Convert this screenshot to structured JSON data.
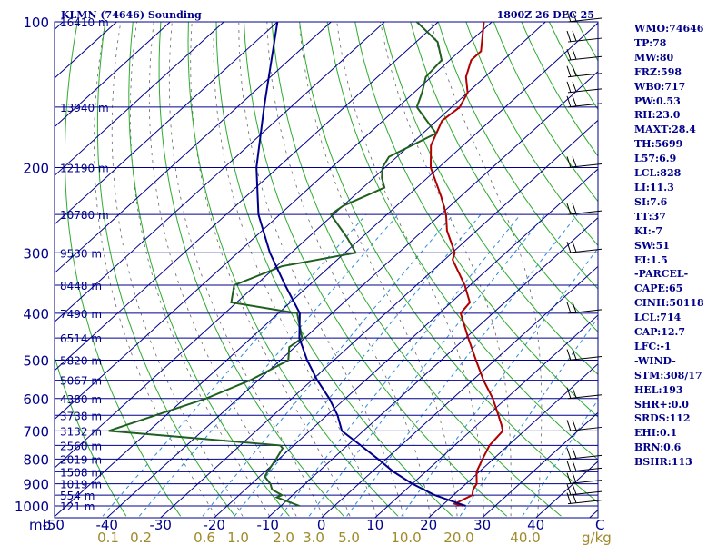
{
  "header": {
    "station": "KLMN (74646) Sounding",
    "time": "1800Z 26 DEC 25"
  },
  "indices": [
    "WMO:74646",
    "TP:78",
    "MW:80",
    "FRZ:598",
    "WB0:717",
    "PW:0.53",
    "RH:23.0",
    "MAXT:28.4",
    "TH:5699",
    "L57:6.9",
    "LCL:828",
    "LI:11.3",
    "SI:7.6",
    "TT:37",
    "KI:-7",
    "SW:51",
    "EI:1.5",
    "-PARCEL-",
    "CAPE:65",
    "CINH:50118",
    "LCL:714",
    "CAP:12.7",
    "LFC:-1",
    "-WIND-",
    "STM:308/17",
    "HEL:193",
    "SHR+:0.0",
    "SRDS:112",
    "EHI:0.1",
    "BRN:0.6",
    "BSHR:113"
  ],
  "chart_data": {
    "type": "line",
    "title": "KLMN (74646) Sounding",
    "subtitle": "1800Z 26 DEC 25",
    "xlabel": "",
    "ylabel": "",
    "x_unit_label": "C",
    "y_unit_label": "mb",
    "mixing_unit_label": "g/kg",
    "pressure_ticks": [
      "100",
      "200",
      "300",
      "400",
      "500",
      "600",
      "700",
      "800",
      "900",
      "1000"
    ],
    "temp_ticks": [
      "-50",
      "-40",
      "-30",
      "-20",
      "-10",
      "0",
      "10",
      "20",
      "30",
      "40"
    ],
    "mixing_ratio_ticks": [
      "0.1",
      "0.2",
      "0.6",
      "1.0",
      "2.0",
      "3.0",
      "5.0",
      "10.0",
      "20.0",
      "40.0"
    ],
    "height_labels": [
      {
        "p": 100,
        "label": "16410 m"
      },
      {
        "p": 150,
        "label": "13940 m"
      },
      {
        "p": 200,
        "label": "12190 m"
      },
      {
        "p": 250,
        "label": "10780 m"
      },
      {
        "p": 300,
        "label": "9530 m"
      },
      {
        "p": 350,
        "label": "8448 m"
      },
      {
        "p": 400,
        "label": "7490 m"
      },
      {
        "p": 450,
        "label": "6514 m"
      },
      {
        "p": 500,
        "label": "5820 m"
      },
      {
        "p": 550,
        "label": "5067 m"
      },
      {
        "p": 600,
        "label": "4380 m"
      },
      {
        "p": 650,
        "label": "3738 m"
      },
      {
        "p": 700,
        "label": "3132 m"
      },
      {
        "p": 750,
        "label": "2560 m"
      },
      {
        "p": 800,
        "label": "2019 m"
      },
      {
        "p": 850,
        "label": "1508 m"
      },
      {
        "p": 900,
        "label": "1019 m"
      },
      {
        "p": 950,
        "label": "554 m"
      },
      {
        "p": 1000,
        "label": "121 m"
      }
    ],
    "series": [
      {
        "color": "#b00000",
        "points": [
          [
            1000,
            24.0
          ],
          [
            990,
            22.0
          ],
          [
            950,
            23.5
          ],
          [
            925,
            22.5
          ],
          [
            900,
            22.0
          ],
          [
            850,
            19.5
          ],
          [
            800,
            18.0
          ],
          [
            750,
            16.5
          ],
          [
            700,
            16.0
          ],
          [
            680,
            14.5
          ],
          [
            650,
            12.0
          ],
          [
            600,
            7.5
          ],
          [
            550,
            2.0
          ],
          [
            500,
            -3.5
          ],
          [
            450,
            -9.5
          ],
          [
            400,
            -16.0
          ],
          [
            380,
            -16.5
          ],
          [
            350,
            -21.0
          ],
          [
            310,
            -28.5
          ],
          [
            300,
            -29.5
          ],
          [
            270,
            -35.5
          ],
          [
            250,
            -39.0
          ],
          [
            230,
            -43.5
          ],
          [
            200,
            -51.5
          ],
          [
            180,
            -56.0
          ],
          [
            160,
            -59.0
          ],
          [
            150,
            -58.5
          ],
          [
            140,
            -60.0
          ],
          [
            130,
            -63.5
          ],
          [
            120,
            -66.0
          ],
          [
            115,
            -66.0
          ],
          [
            100,
            -71.5
          ]
        ]
      },
      {
        "color": "#1f5f1f",
        "points": [
          [
            1000,
            -6.5
          ],
          [
            960,
            -12.5
          ],
          [
            950,
            -12.0
          ],
          [
            925,
            -15.0
          ],
          [
            900,
            -16.5
          ],
          [
            870,
            -19.0
          ],
          [
            850,
            -19.5
          ],
          [
            800,
            -20.5
          ],
          [
            760,
            -21.5
          ],
          [
            750,
            -22.5
          ],
          [
            720,
            -43.0
          ],
          [
            700,
            -57.5
          ],
          [
            650,
            -52.0
          ],
          [
            600,
            -46.0
          ],
          [
            550,
            -41.5
          ],
          [
            500,
            -38.5
          ],
          [
            470,
            -41.0
          ],
          [
            450,
            -40.5
          ],
          [
            400,
            -46.5
          ],
          [
            380,
            -61.0
          ],
          [
            350,
            -64.0
          ],
          [
            320,
            -59.0
          ],
          [
            300,
            -48.0
          ],
          [
            280,
            -52.5
          ],
          [
            250,
            -60.5
          ],
          [
            240,
            -60.0
          ],
          [
            220,
            -56.0
          ],
          [
            210,
            -58.5
          ],
          [
            200,
            -60.5
          ],
          [
            190,
            -61.5
          ],
          [
            170,
            -57.5
          ],
          [
            150,
            -66.5
          ],
          [
            140,
            -68.5
          ],
          [
            130,
            -71.0
          ],
          [
            120,
            -71.5
          ],
          [
            110,
            -76.0
          ],
          [
            100,
            -84.0
          ]
        ]
      },
      {
        "color": "#00008b",
        "points": [
          [
            1000,
            24.5
          ],
          [
            950,
            16.5
          ],
          [
            900,
            10.0
          ],
          [
            850,
            4.0
          ],
          [
            800,
            -1.5
          ],
          [
            750,
            -7.5
          ],
          [
            700,
            -14.0
          ],
          [
            650,
            -18.0
          ],
          [
            600,
            -23.0
          ],
          [
            550,
            -29.0
          ],
          [
            500,
            -35.0
          ],
          [
            450,
            -41.0
          ],
          [
            400,
            -46.0
          ],
          [
            350,
            -54.5
          ],
          [
            300,
            -64.0
          ],
          [
            250,
            -74.0
          ],
          [
            200,
            -84.0
          ],
          [
            150,
            -95.0
          ],
          [
            100,
            -110.0
          ]
        ]
      }
    ],
    "wind_levels": [
      990,
      950,
      900,
      850,
      800,
      700,
      600,
      500,
      400,
      300,
      250,
      200,
      150,
      140,
      130,
      120,
      110,
      100
    ],
    "grid": true
  }
}
